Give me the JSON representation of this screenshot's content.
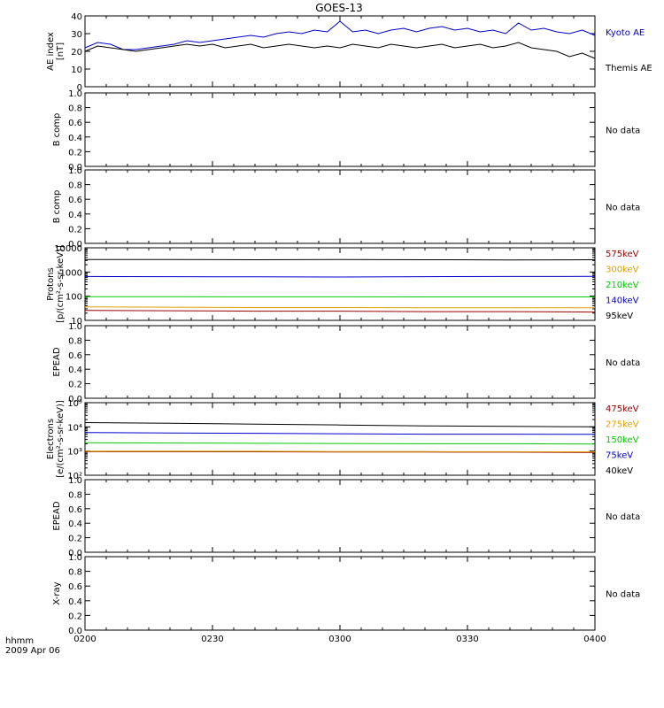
{
  "title": "GOES-13",
  "time_axis": {
    "label": "hhmm",
    "date": "2009 Apr 06",
    "ticks": [
      "0200",
      "0230",
      "0300",
      "0330",
      "0400"
    ]
  },
  "no_data_text": "No data",
  "chart_data": [
    {
      "id": "ae",
      "type": "line",
      "ylabel": [
        "AE index",
        "[nT]"
      ],
      "ylim": [
        0,
        40
      ],
      "yticks": [
        "0",
        "10",
        "20",
        "30",
        "40"
      ],
      "yvals": [
        0,
        10,
        20,
        30,
        40
      ],
      "x_range": [
        0,
        120
      ],
      "series": [
        {
          "name": "Kyoto AE",
          "color": "#0000cc",
          "x": [
            0,
            3,
            6,
            9,
            12,
            15,
            18,
            21,
            24,
            27,
            30,
            33,
            36,
            39,
            42,
            45,
            48,
            51,
            54,
            57,
            60,
            63,
            66,
            69,
            72,
            75,
            78,
            81,
            84,
            87,
            90,
            93,
            96,
            99,
            102,
            105,
            108,
            111,
            114,
            117,
            120
          ],
          "y": [
            22,
            25,
            24,
            21,
            21,
            22,
            23,
            24,
            26,
            25,
            26,
            27,
            28,
            29,
            28,
            30,
            31,
            30,
            32,
            31,
            37,
            31,
            32,
            30,
            32,
            33,
            31,
            33,
            34,
            32,
            33,
            31,
            32,
            30,
            36,
            32,
            33,
            31,
            30,
            32,
            29
          ]
        },
        {
          "name": "Themis AE",
          "color": "#000000",
          "x": [
            0,
            3,
            6,
            9,
            12,
            15,
            18,
            21,
            24,
            27,
            30,
            33,
            36,
            39,
            42,
            45,
            48,
            51,
            54,
            57,
            60,
            63,
            66,
            69,
            72,
            75,
            78,
            81,
            84,
            87,
            90,
            93,
            96,
            99,
            102,
            105,
            108,
            111,
            114,
            117,
            120
          ],
          "y": [
            20,
            23,
            22,
            21,
            20,
            21,
            22,
            23,
            24,
            23,
            24,
            22,
            23,
            24,
            22,
            23,
            24,
            23,
            22,
            23,
            22,
            24,
            23,
            22,
            24,
            23,
            22,
            23,
            24,
            22,
            23,
            24,
            22,
            23,
            25,
            22,
            21,
            20,
            17,
            19,
            16
          ]
        }
      ]
    },
    {
      "id": "bcomp1",
      "type": "line",
      "ylabel": [
        "B comp"
      ],
      "ylim": [
        0,
        1
      ],
      "yticks": [
        "0.0",
        "0.2",
        "0.4",
        "0.6",
        "0.8",
        "1.0"
      ],
      "yvals": [
        0,
        0.2,
        0.4,
        0.6,
        0.8,
        1.0
      ],
      "no_data": true,
      "series": []
    },
    {
      "id": "bcomp2",
      "type": "line",
      "ylabel": [
        "B comp"
      ],
      "ylim": [
        0,
        1
      ],
      "yticks": [
        "0.0",
        "0.2",
        "0.4",
        "0.6",
        "0.8",
        "1.0"
      ],
      "yvals": [
        0,
        0.2,
        0.4,
        0.6,
        0.8,
        1.0
      ],
      "no_data": true,
      "series": []
    },
    {
      "id": "protons",
      "type": "line",
      "scale": "log",
      "ylabel": [
        "Protons",
        "[p/(cm²-s-sr-keV)]"
      ],
      "ylim": [
        10,
        10000
      ],
      "yticks": [
        "10",
        "100",
        "1000",
        "10000"
      ],
      "yvals": [
        10,
        100,
        1000,
        10000
      ],
      "x_range": [
        0,
        120
      ],
      "series": [
        {
          "name": "575keV",
          "color": "#990000",
          "x": [
            0,
            20,
            40,
            60,
            80,
            100,
            120
          ],
          "y": [
            26,
            25,
            24,
            24,
            23,
            23,
            22
          ]
        },
        {
          "name": "300keV",
          "color": "#e0a000",
          "x": [
            0,
            20,
            40,
            60,
            80,
            100,
            120
          ],
          "y": [
            36,
            35,
            34,
            34,
            33,
            33,
            33
          ]
        },
        {
          "name": "210keV",
          "color": "#00cc00",
          "x": [
            0,
            20,
            40,
            60,
            80,
            100,
            120
          ],
          "y": [
            95,
            95,
            94,
            94,
            93,
            93,
            93
          ]
        },
        {
          "name": "140keV",
          "color": "#0000cc",
          "x": [
            0,
            20,
            40,
            60,
            80,
            100,
            120
          ],
          "y": [
            650,
            640,
            630,
            620,
            640,
            650,
            660
          ]
        },
        {
          "name": "95keV",
          "color": "#000000",
          "x": [
            0,
            20,
            40,
            60,
            80,
            100,
            120
          ],
          "y": [
            3300,
            3250,
            3200,
            3250,
            3200,
            3150,
            3200
          ]
        }
      ]
    },
    {
      "id": "epead1",
      "type": "line",
      "ylabel": [
        "EPEAD"
      ],
      "ylim": [
        0,
        1
      ],
      "yticks": [
        "0.0",
        "0.2",
        "0.4",
        "0.6",
        "0.8",
        "1.0"
      ],
      "yvals": [
        0,
        0.2,
        0.4,
        0.6,
        0.8,
        1.0
      ],
      "no_data": true,
      "series": []
    },
    {
      "id": "electrons",
      "type": "line",
      "scale": "log",
      "ylabel": [
        "Electrons",
        "[e/(cm²-s-sr-keV)]"
      ],
      "ylim": [
        100,
        100000
      ],
      "yticks": [
        "10²",
        "10³",
        "10⁴",
        "10⁵"
      ],
      "yvals": [
        100,
        1000,
        10000,
        100000
      ],
      "x_range": [
        0,
        120
      ],
      "series": [
        {
          "name": "475keV",
          "color": "#990000",
          "x": [
            0,
            20,
            40,
            60,
            80,
            100,
            120
          ],
          "y": [
            950,
            940,
            930,
            920,
            910,
            900,
            880
          ]
        },
        {
          "name": "275keV",
          "color": "#e0a000",
          "x": [
            0,
            20,
            40,
            60,
            80,
            100,
            120
          ],
          "y": [
            1000,
            990,
            980,
            960,
            950,
            940,
            930
          ]
        },
        {
          "name": "150keV",
          "color": "#00cc00",
          "x": [
            0,
            20,
            40,
            60,
            80,
            100,
            120
          ],
          "y": [
            2200,
            2150,
            2100,
            2050,
            2000,
            2000,
            1950
          ]
        },
        {
          "name": "75keV",
          "color": "#0000cc",
          "x": [
            0,
            20,
            40,
            60,
            80,
            100,
            120
          ],
          "y": [
            5800,
            5600,
            5400,
            5200,
            5000,
            5000,
            4900
          ]
        },
        {
          "name": "40keV",
          "color": "#000000",
          "x": [
            0,
            20,
            40,
            60,
            80,
            100,
            120
          ],
          "y": [
            15000,
            14000,
            13000,
            12000,
            11000,
            10500,
            10000
          ]
        }
      ]
    },
    {
      "id": "epead2",
      "type": "line",
      "ylabel": [
        "EPEAD"
      ],
      "ylim": [
        0,
        1
      ],
      "yticks": [
        "0.0",
        "0.2",
        "0.4",
        "0.6",
        "0.8",
        "1.0"
      ],
      "yvals": [
        0,
        0.2,
        0.4,
        0.6,
        0.8,
        1.0
      ],
      "no_data": true,
      "series": []
    },
    {
      "id": "xray",
      "type": "line",
      "ylabel": [
        "X-ray"
      ],
      "ylim": [
        0,
        1
      ],
      "yticks": [
        "0.0",
        "0.2",
        "0.4",
        "0.6",
        "0.8",
        "1.0"
      ],
      "yvals": [
        0,
        0.2,
        0.4,
        0.6,
        0.8,
        1.0
      ],
      "no_data": true,
      "series": []
    }
  ]
}
